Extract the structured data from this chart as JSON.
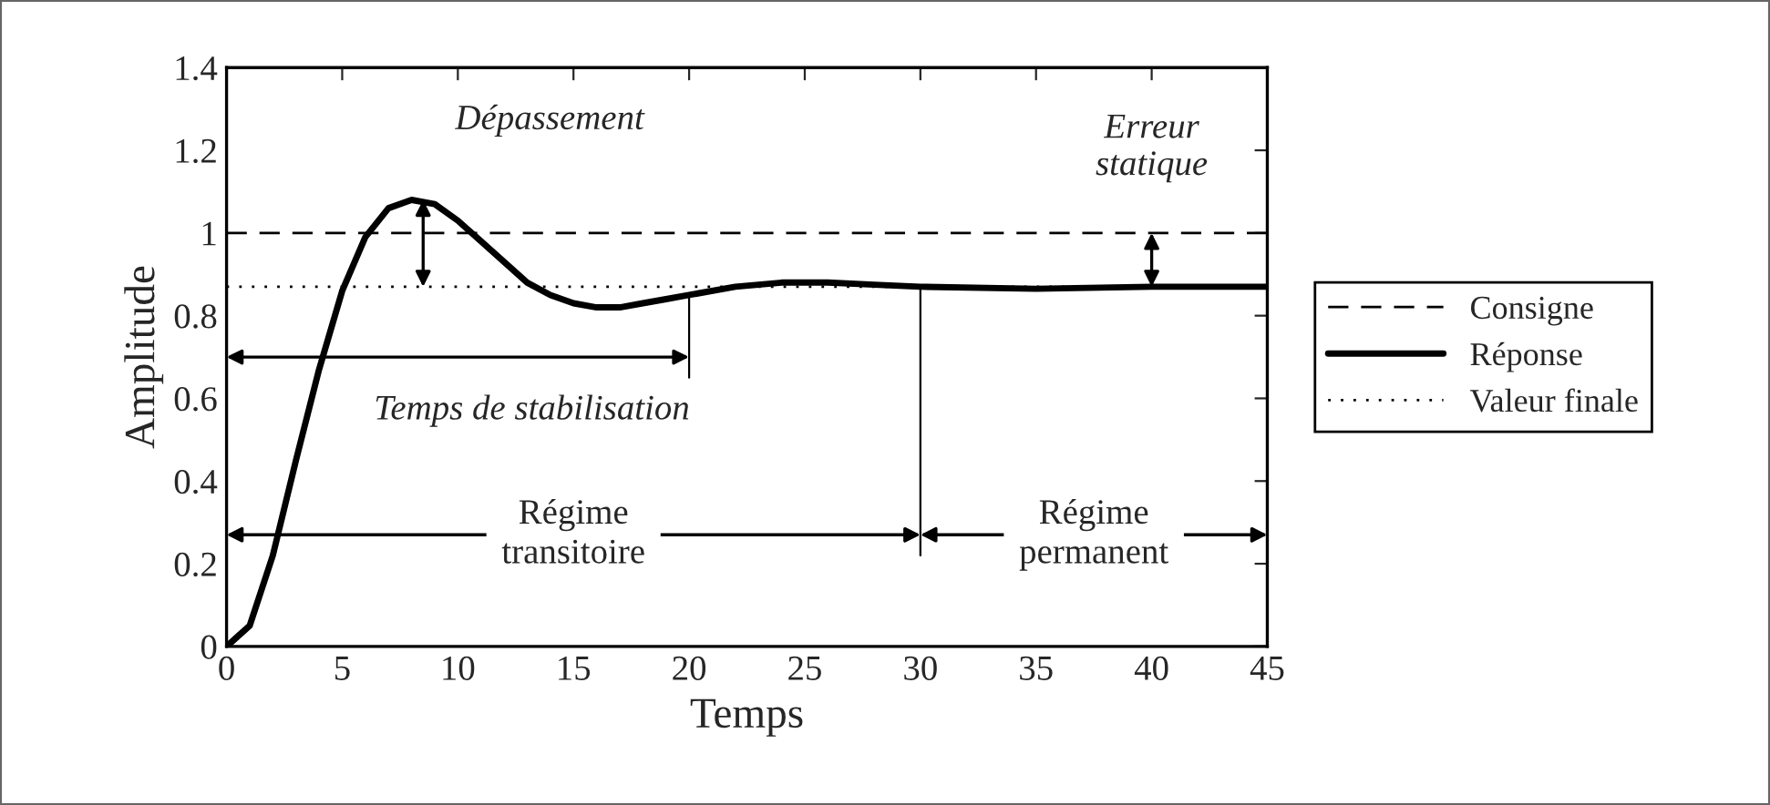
{
  "chart_data": {
    "type": "line",
    "xlabel": "Temps",
    "ylabel": "Amplitude",
    "series": [
      {
        "name": "Consigne",
        "color": "#000000",
        "line_style": "dashed",
        "x": [
          0,
          45
        ],
        "values": [
          1,
          1
        ]
      },
      {
        "name": "Réponse",
        "color": "#000000",
        "line_style": "solid",
        "x": [
          0,
          1,
          2,
          3,
          4,
          5,
          6,
          7,
          8,
          9,
          10,
          11,
          12,
          13,
          14,
          15,
          16,
          17,
          18,
          19,
          20,
          22,
          24,
          26,
          28,
          30,
          35,
          40,
          45
        ],
        "values": [
          0,
          0.05,
          0.22,
          0.45,
          0.67,
          0.86,
          0.99,
          1.06,
          1.08,
          1.07,
          1.03,
          0.98,
          0.93,
          0.88,
          0.85,
          0.83,
          0.82,
          0.82,
          0.83,
          0.84,
          0.85,
          0.87,
          0.88,
          0.88,
          0.875,
          0.87,
          0.865,
          0.87,
          0.87
        ]
      },
      {
        "name": "Valeur finale",
        "color": "#000000",
        "line_style": "dotted",
        "x": [
          0,
          45
        ],
        "values": [
          0.87,
          0.87
        ]
      }
    ],
    "annotations": [
      {
        "text": "Dépassement",
        "x": 8.5,
        "y": 1.08
      },
      {
        "text": "Erreur\nstatique",
        "x": 40,
        "y": 1
      },
      {
        "text": "Temps de stabilisation",
        "x": 20,
        "y": 0.85
      },
      "Régime\ntransitoire",
      "Régime\npermanent"
    ],
    "xlim": [
      0,
      45
    ],
    "ylim": [
      0,
      1.4
    ],
    "xticks": [
      0,
      5,
      10,
      15,
      20,
      25,
      30,
      35,
      40,
      45
    ],
    "yticks": [
      0,
      0.2,
      0.4,
      0.6,
      0.8,
      1,
      1.2,
      1.4
    ],
    "legend": "right",
    "grid": false,
    "marker": "none"
  }
}
